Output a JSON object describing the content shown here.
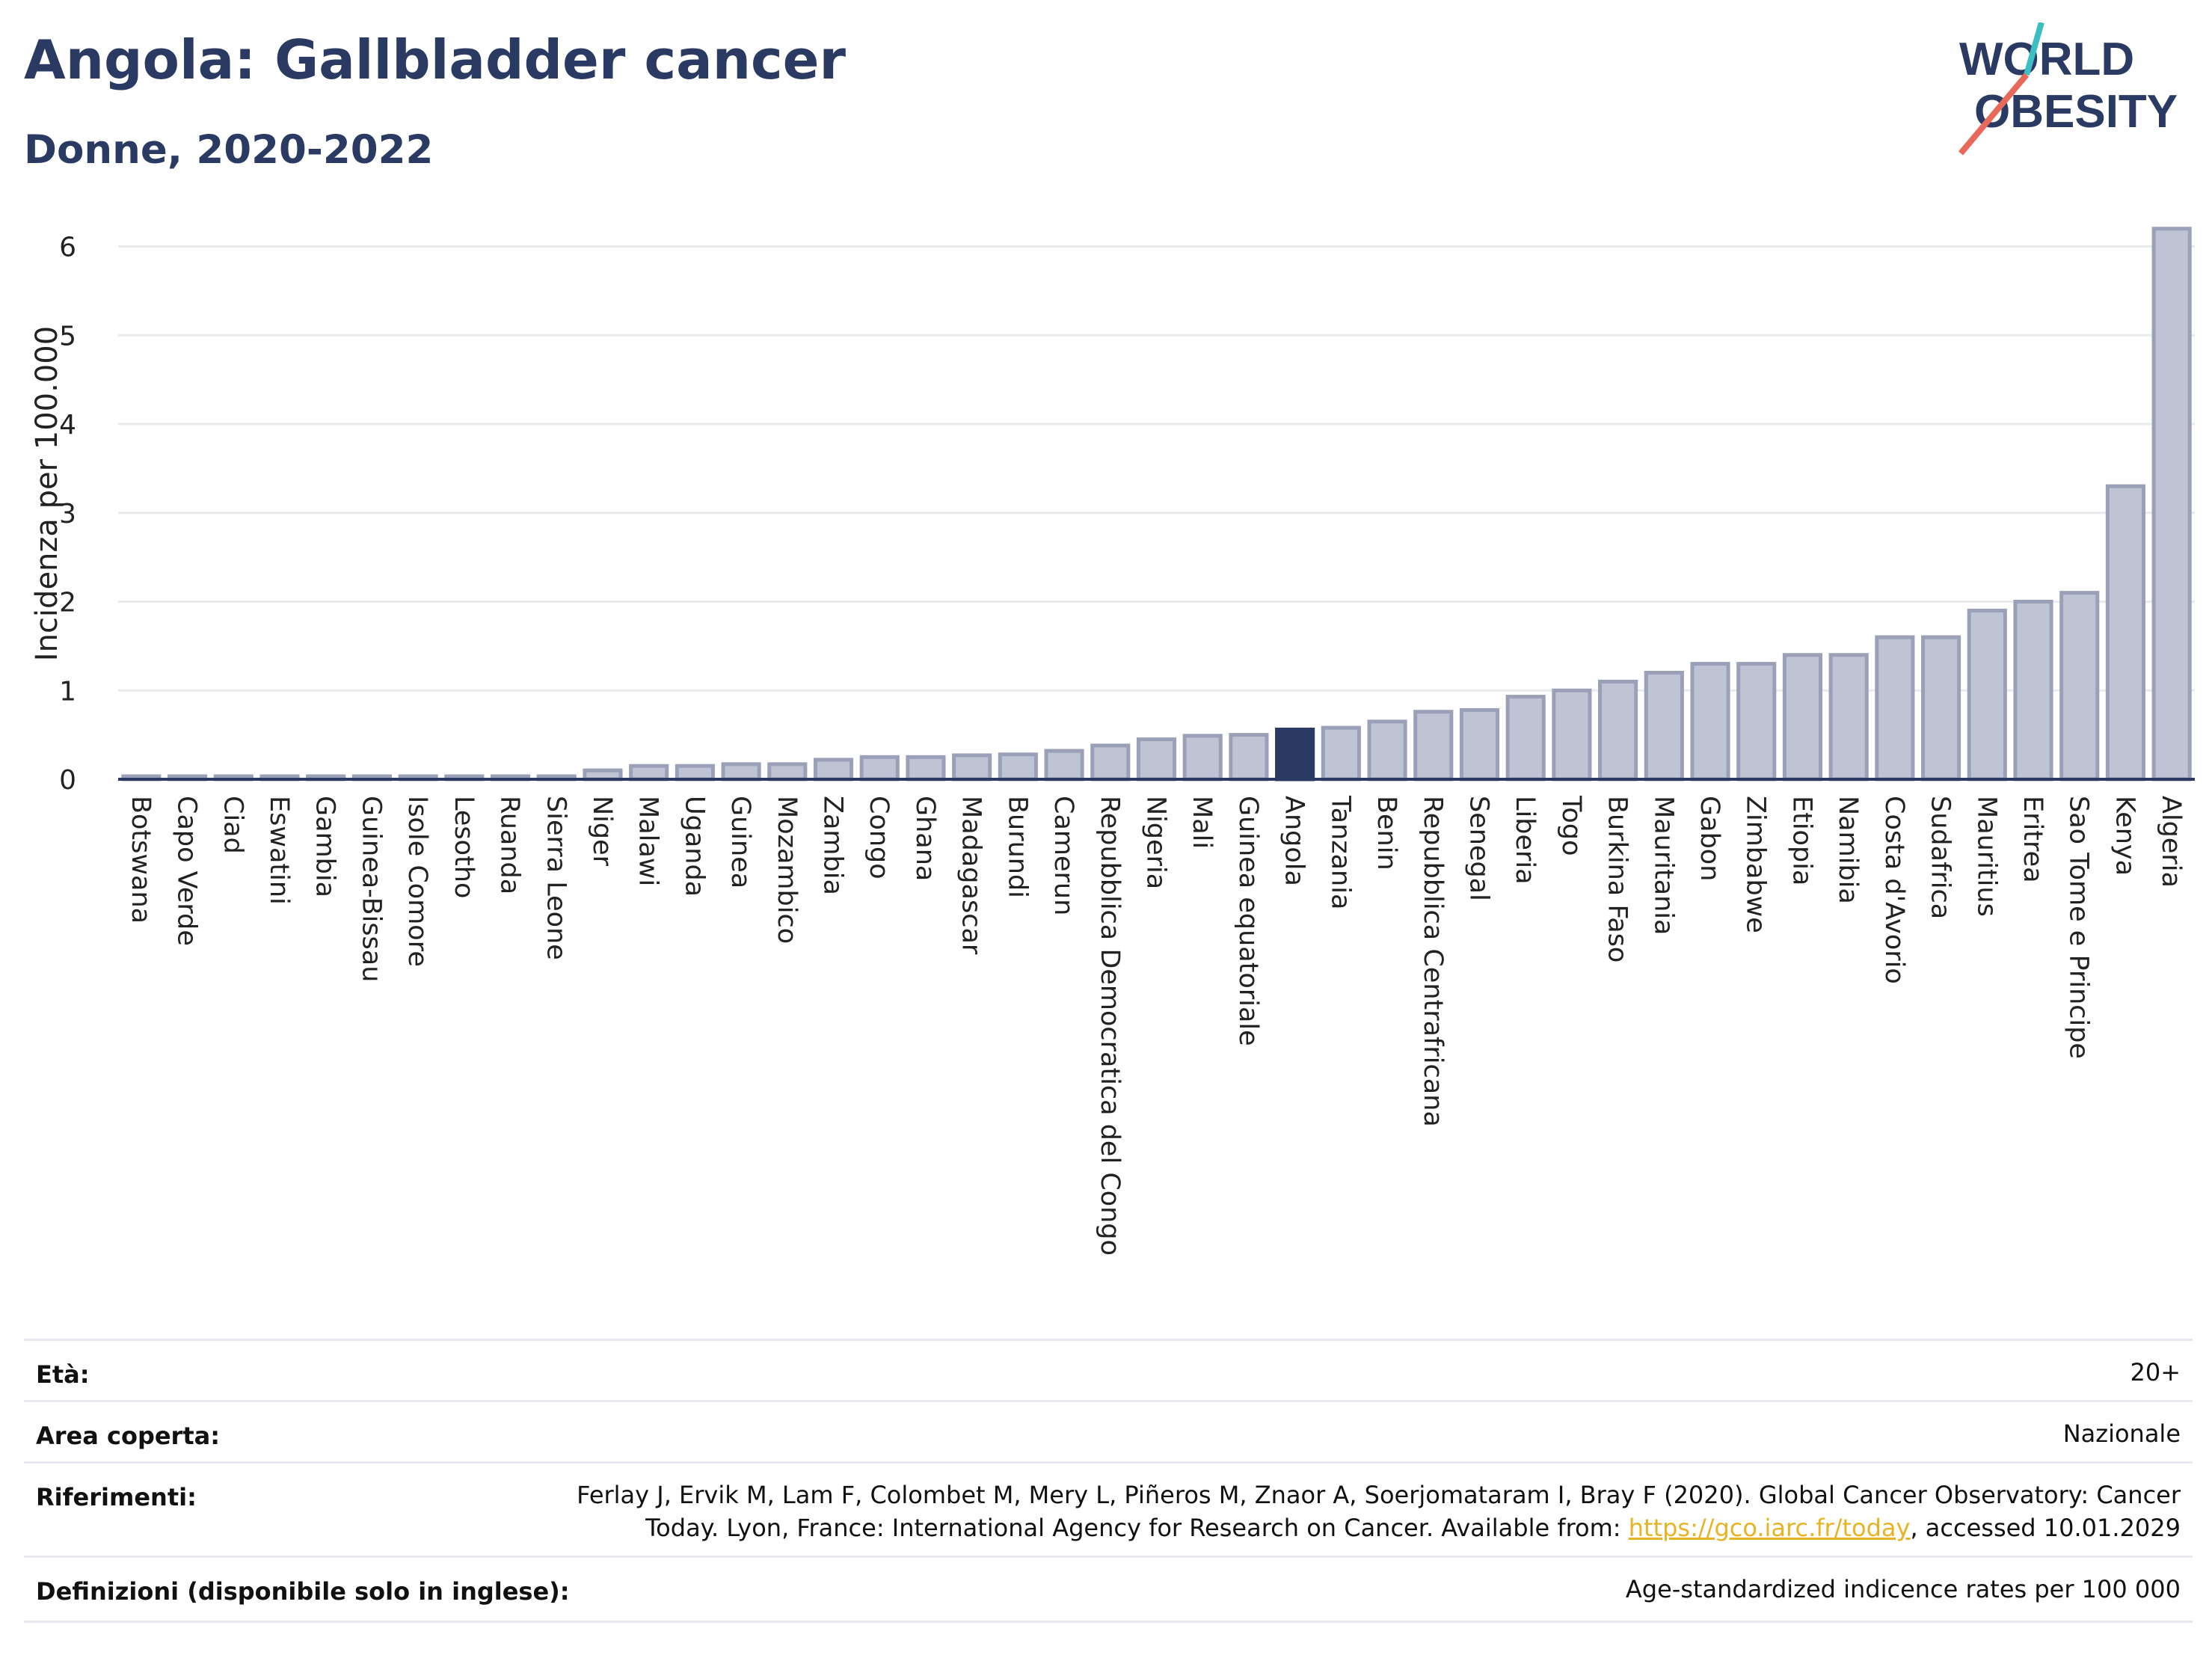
{
  "header": {
    "title": "Angola: Gallbladder cancer",
    "subtitle": "Donne, 2020-2022"
  },
  "logo": {
    "line1": "WORLD",
    "line2": "OBESITY"
  },
  "chart_data": {
    "type": "bar",
    "ylabel": "Incidenza per 100.000",
    "ylim": [
      0,
      6.4
    ],
    "yticks": [
      0,
      1,
      2,
      3,
      4,
      5,
      6
    ],
    "grid": true,
    "highlight": "Angola",
    "colors": {
      "bar": "#bfc4d4",
      "bar_edge": "#9aa0b8",
      "highlight": "#2a3a63",
      "grid": "#e8eaee",
      "axis": "#2a3a63"
    },
    "categories": [
      "Botswana",
      "Capo Verde",
      "Ciad",
      "Eswatini",
      "Gambia",
      "Guinea-Bissau",
      "Isole Comore",
      "Lesotho",
      "Ruanda",
      "Sierra Leone",
      "Niger",
      "Malawi",
      "Uganda",
      "Guinea",
      "Mozambico",
      "Zambia",
      "Congo",
      "Ghana",
      "Madagascar",
      "Burundi",
      "Camerun",
      "Repubblica Democratica del Congo",
      "Nigeria",
      "Mali",
      "Guinea equatoriale",
      "Angola",
      "Tanzania",
      "Benin",
      "Repubblica Centrafricana",
      "Senegal",
      "Liberia",
      "Togo",
      "Burkina Faso",
      "Mauritania",
      "Gabon",
      "Zimbabwe",
      "Etiopia",
      "Namibia",
      "Costa d'Avorio",
      "Sudafrica",
      "Mauritius",
      "Eritrea",
      "Sao Tome e Principe",
      "Kenya",
      "Algeria"
    ],
    "values": [
      0.02,
      0.02,
      0.02,
      0.02,
      0.02,
      0.02,
      0.02,
      0.02,
      0.02,
      0.02,
      0.1,
      0.15,
      0.15,
      0.17,
      0.17,
      0.22,
      0.25,
      0.25,
      0.27,
      0.28,
      0.32,
      0.38,
      0.45,
      0.49,
      0.5,
      0.56,
      0.58,
      0.65,
      0.76,
      0.78,
      0.93,
      1.0,
      1.1,
      1.2,
      1.3,
      1.3,
      1.4,
      1.4,
      1.6,
      1.6,
      1.9,
      2.0,
      2.1,
      3.3,
      6.2
    ]
  },
  "footer": {
    "eta_label": "Età:",
    "eta_value": "20+",
    "area_label": "Area coperta:",
    "area_value": "Nazionale",
    "riferimenti_label": "Riferimenti:",
    "riferimenti_line1": "Ferlay J, Ervik M, Lam F, Colombet M, Mery L, Piñeros M, Znaor A, Soerjomataram I, Bray F (2020). Global Cancer Observatory: Cancer",
    "riferimenti_line2_pre": "Today. Lyon, France: International Agency for Research on Cancer. Available from: ",
    "riferimenti_link": "https://gco.iarc.fr/today",
    "riferimenti_line2_post": ", accessed 10.01.2029",
    "definizioni_label": "Definizioni (disponibile solo in inglese):",
    "definizioni_value": "Age-standardized indicence rates per 100 000"
  }
}
